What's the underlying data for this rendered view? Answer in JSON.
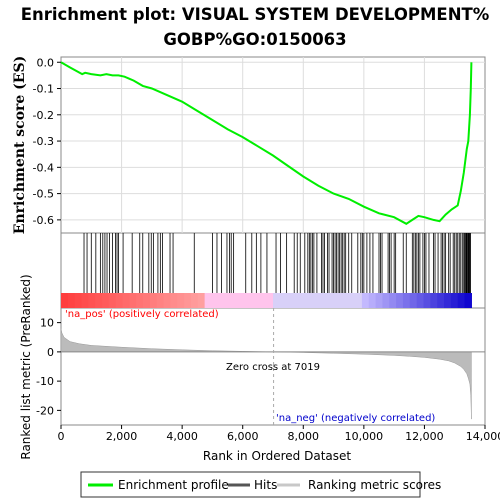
{
  "chart_data": {
    "type": "line",
    "title_line1": "Enrichment plot: VISUAL SYSTEM DEVELOPMENT%",
    "title_line2": "GOBP%GO:0150063",
    "top_panel": {
      "ylabel": "Enrichment score (ES)",
      "ylim": [
        -0.65,
        0.02
      ],
      "yticks": [
        {
          "value": 0.0,
          "label": "0.0"
        },
        {
          "value": -0.1,
          "label": "-0.1"
        },
        {
          "value": -0.2,
          "label": "-0.2"
        },
        {
          "value": -0.3,
          "label": "-0.3"
        },
        {
          "value": -0.4,
          "label": "-0.4"
        },
        {
          "value": -0.5,
          "label": "-0.5"
        },
        {
          "value": -0.6,
          "label": "-0.6"
        }
      ],
      "series": [
        {
          "name": "Enrichment profile",
          "color": "#00ee00",
          "x": [
            0,
            300,
            700,
            800,
            1000,
            1300,
            1500,
            1700,
            1900,
            2100,
            2400,
            2700,
            3000,
            3500,
            4000,
            4500,
            5000,
            5500,
            6000,
            6500,
            7000,
            7500,
            8000,
            8500,
            9000,
            9500,
            10000,
            10500,
            11000,
            11400,
            11600,
            11800,
            12000,
            12300,
            12500,
            12700,
            12900,
            13100,
            13200,
            13300,
            13400,
            13450,
            13500,
            13530,
            13550
          ],
          "y": [
            0.0,
            -0.02,
            -0.045,
            -0.04,
            -0.045,
            -0.05,
            -0.045,
            -0.05,
            -0.05,
            -0.055,
            -0.07,
            -0.09,
            -0.1,
            -0.125,
            -0.15,
            -0.185,
            -0.22,
            -0.255,
            -0.285,
            -0.32,
            -0.355,
            -0.395,
            -0.435,
            -0.47,
            -0.5,
            -0.52,
            -0.55,
            -0.575,
            -0.59,
            -0.615,
            -0.6,
            -0.585,
            -0.59,
            -0.6,
            -0.605,
            -0.58,
            -0.56,
            -0.545,
            -0.49,
            -0.42,
            -0.33,
            -0.3,
            -0.2,
            -0.1,
            0.0
          ]
        }
      ]
    },
    "hits": [
      760,
      860,
      1000,
      1150,
      1300,
      1380,
      1450,
      1520,
      1600,
      1700,
      1800,
      1850,
      1900,
      2050,
      2350,
      2600,
      2700,
      2900,
      2980,
      3050,
      3200,
      3280,
      3350,
      3600,
      3700,
      4400,
      5000,
      5150,
      5300,
      5480,
      5560,
      5620,
      5700,
      6100,
      6300,
      6450,
      6600,
      6800,
      7100,
      7250,
      7450,
      7700,
      7800,
      7900,
      8050,
      8150,
      8200,
      8250,
      8300,
      8350,
      8450,
      8600,
      8650,
      8700,
      8800,
      8850,
      8950,
      9000,
      9050,
      9100,
      9150,
      9200,
      9250,
      9300,
      9350,
      9400,
      9500,
      9600,
      9800,
      9900,
      9950,
      10000,
      10100,
      10200,
      10300,
      10500,
      10550,
      10600,
      10800,
      10850,
      10900,
      11000,
      11050,
      11300,
      11400,
      11600,
      11650,
      11700,
      11750,
      11800,
      11850,
      11950,
      12000,
      12050,
      12150,
      12300,
      12350,
      12450,
      12550,
      12600,
      12650,
      12700,
      12800,
      12850,
      12950,
      13000,
      13050,
      13100,
      13150,
      13200,
      13250,
      13300,
      13320,
      13350,
      13380,
      13400,
      13420,
      13450,
      13470,
      13490,
      13510,
      13520
    ],
    "bottom_panel": {
      "ylabel": "Ranked list metric (PreRanked)",
      "ylim": [
        -25,
        15
      ],
      "yticks": [
        {
          "value": 10,
          "label": "10"
        },
        {
          "value": 0,
          "label": "0"
        },
        {
          "value": -10,
          "label": "-10"
        },
        {
          "value": -20,
          "label": "-20"
        }
      ],
      "metric_x": [
        0,
        30,
        100,
        300,
        600,
        1000,
        2000,
        3000,
        4000,
        5000,
        6000,
        7019,
        8000,
        9000,
        10000,
        11000,
        11500,
        12000,
        12500,
        12800,
        13000,
        13200,
        13300,
        13400,
        13450,
        13500,
        13530,
        13550
      ],
      "metric_y": [
        8,
        6.5,
        5,
        3.5,
        2.8,
        2.2,
        1.6,
        1.1,
        0.7,
        0.4,
        0.2,
        0.0,
        -0.2,
        -0.5,
        -0.8,
        -1.2,
        -1.5,
        -1.9,
        -2.5,
        -3.1,
        -3.8,
        -5,
        -6,
        -7.5,
        -9,
        -11,
        -15,
        -23
      ],
      "label_pos": "'na_pos' (positively correlated)",
      "label_neg": "'na_neg' (negatively correlated)",
      "zero_cross_label": "Zero cross at 7019",
      "zero_cross": 7019
    },
    "xaxis": {
      "label": "Rank in Ordered Dataset",
      "xlim": [
        0,
        14000
      ],
      "ticks": [
        {
          "value": 0,
          "label": "0"
        },
        {
          "value": 2000,
          "label": "2,000"
        },
        {
          "value": 4000,
          "label": "4,000"
        },
        {
          "value": 6000,
          "label": "6,000"
        },
        {
          "value": 8000,
          "label": "8,000"
        },
        {
          "value": 10000,
          "label": "10,000"
        },
        {
          "value": 12000,
          "label": "12,000"
        },
        {
          "value": 14000,
          "label": "14,000"
        }
      ]
    },
    "legend": {
      "placement": "bottom",
      "items": [
        {
          "label": "Enrichment profile",
          "color": "#00ee00",
          "kind": "profile"
        },
        {
          "label": "Hits",
          "color": "#555555",
          "kind": "hits"
        },
        {
          "label": "Ranking metric scores",
          "color": "#c0c0c0",
          "kind": "metric"
        }
      ]
    },
    "colors": {
      "pos_label": "#ff0000",
      "neg_label": "#0000cc",
      "zero_line": "#aaaaaa"
    }
  }
}
